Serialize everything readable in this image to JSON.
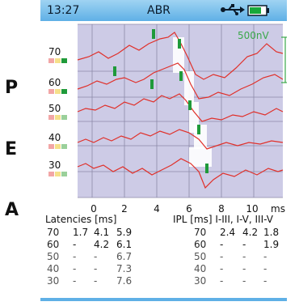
{
  "side_letters": [
    "P",
    "E",
    "A"
  ],
  "status_bar": {
    "time": "13:27",
    "title": "ABR",
    "usb_icon": "usb-icon",
    "battery_icon": "battery-icon"
  },
  "plot": {
    "levels": [
      "70",
      "60",
      "50",
      "40",
      "30"
    ],
    "scale_label": "500nV",
    "x_ticks": [
      "0",
      "2",
      "4",
      "6",
      "8",
      "10",
      "ms"
    ],
    "colors": {
      "background": "#cdcbe6",
      "grid": "#8c8aa8",
      "trace": "#e0302a",
      "marker": "#1f9a3a",
      "scale": "#3aa84a"
    }
  },
  "latencies": {
    "title": "Latencies [ms]",
    "rows": [
      {
        "level": "70",
        "values": [
          "1.7",
          "4.1",
          "5.9"
        ]
      },
      {
        "level": "60",
        "values": [
          "-",
          "4.2",
          "6.1"
        ]
      },
      {
        "level": "50",
        "values": [
          "-",
          "-",
          "6.7"
        ]
      },
      {
        "level": "40",
        "values": [
          "-",
          "-",
          "7.3"
        ]
      },
      {
        "level": "30",
        "values": [
          "-",
          "-",
          "7.6"
        ]
      }
    ]
  },
  "ipl": {
    "title": "IPL [ms] I-III, I-V, III-V",
    "rows": [
      {
        "level": "70",
        "values": [
          "2.4",
          "4.2",
          "1.8"
        ]
      },
      {
        "level": "60",
        "values": [
          "-",
          "-",
          "1.9"
        ]
      },
      {
        "level": "50",
        "values": [
          "-",
          "-",
          "-"
        ]
      },
      {
        "level": "40",
        "values": [
          "-",
          "-",
          "-"
        ]
      },
      {
        "level": "30",
        "values": [
          "-",
          "-",
          "-"
        ]
      }
    ]
  }
}
